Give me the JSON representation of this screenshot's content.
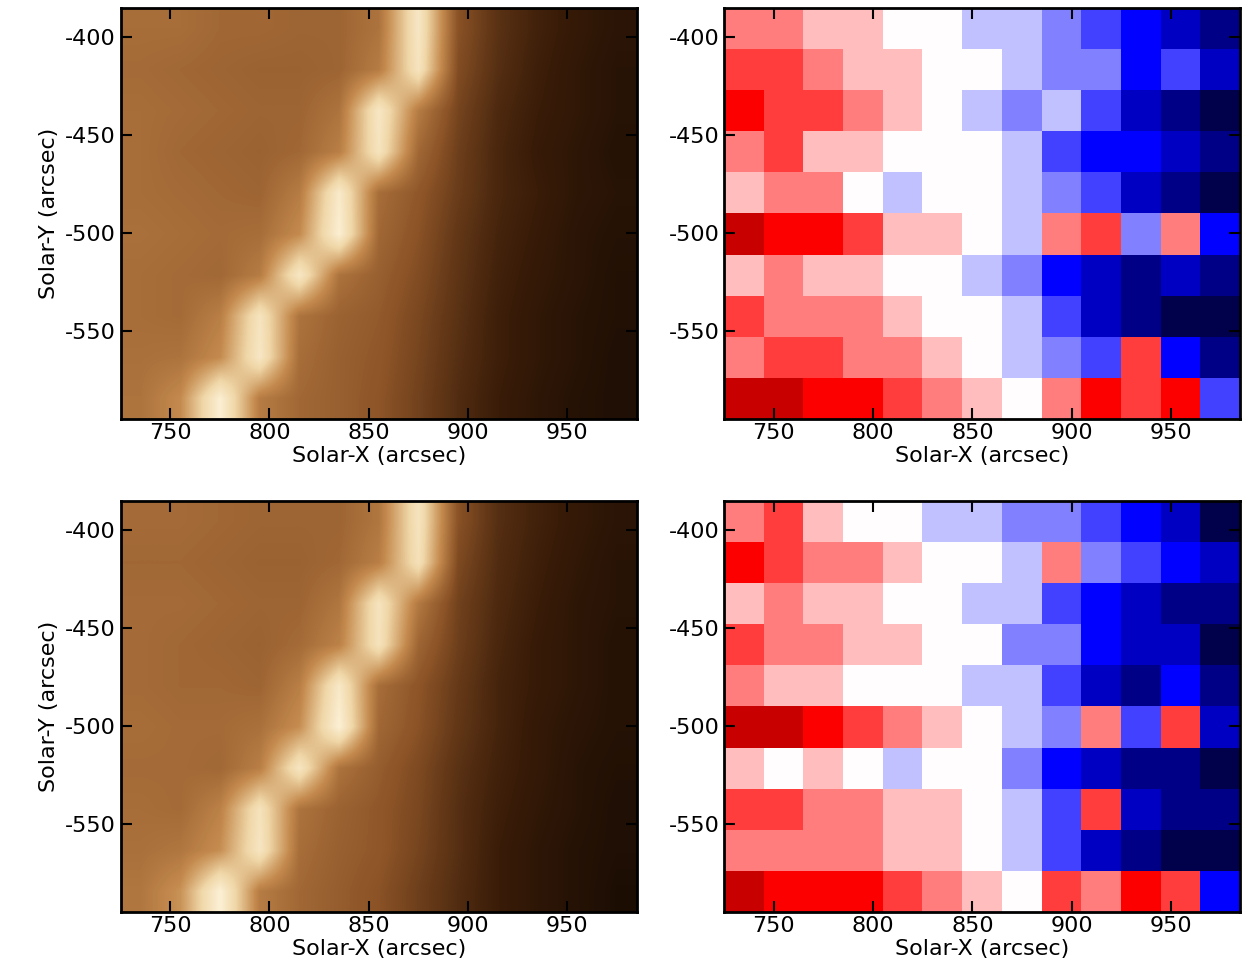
{
  "chart_data": [
    {
      "type": "heatmap",
      "xlabel": "Solar-X (arcsec)",
      "ylabel": "Solar-Y (arcsec)",
      "xlim": [
        725,
        985
      ],
      "ylim": [
        -595,
        -385
      ],
      "xticks": [
        750,
        800,
        850,
        900,
        950
      ],
      "yticks": [
        -550,
        -500,
        -450,
        -400
      ],
      "clim": [
        0,
        1
      ],
      "cells": [
        [
          0.5,
          0.5,
          0.48,
          0.48,
          0.47,
          0.47,
          0.52,
          0.9,
          0.4,
          0.28,
          0.22,
          0.18,
          0.15
        ],
        [
          0.49,
          0.48,
          0.47,
          0.46,
          0.46,
          0.47,
          0.55,
          0.88,
          0.38,
          0.27,
          0.21,
          0.17,
          0.14
        ],
        [
          0.5,
          0.49,
          0.48,
          0.47,
          0.47,
          0.52,
          0.9,
          0.55,
          0.35,
          0.25,
          0.2,
          0.17,
          0.14
        ],
        [
          0.5,
          0.48,
          0.47,
          0.46,
          0.48,
          0.56,
          0.88,
          0.48,
          0.33,
          0.24,
          0.19,
          0.16,
          0.13
        ],
        [
          0.5,
          0.49,
          0.48,
          0.47,
          0.55,
          0.92,
          0.5,
          0.42,
          0.32,
          0.24,
          0.2,
          0.16,
          0.14
        ],
        [
          0.51,
          0.5,
          0.49,
          0.5,
          0.6,
          0.95,
          0.48,
          0.4,
          0.3,
          0.23,
          0.19,
          0.15,
          0.13
        ],
        [
          0.5,
          0.49,
          0.48,
          0.55,
          0.9,
          0.52,
          0.45,
          0.38,
          0.29,
          0.22,
          0.18,
          0.15,
          0.12
        ],
        [
          0.5,
          0.49,
          0.56,
          0.88,
          0.52,
          0.46,
          0.43,
          0.36,
          0.28,
          0.21,
          0.17,
          0.14,
          0.12
        ],
        [
          0.51,
          0.52,
          0.6,
          0.9,
          0.5,
          0.45,
          0.42,
          0.35,
          0.27,
          0.21,
          0.17,
          0.14,
          0.11
        ],
        [
          0.52,
          0.6,
          0.95,
          0.55,
          0.48,
          0.45,
          0.41,
          0.34,
          0.26,
          0.2,
          0.16,
          0.13,
          0.11
        ]
      ]
    },
    {
      "type": "heatmap",
      "xlabel": "Solar-X (arcsec)",
      "xlim": [
        725,
        985
      ],
      "ylim": [
        -595,
        -385
      ],
      "xticks": [
        750,
        800,
        850,
        900,
        950
      ],
      "yticks": [
        -550,
        -500,
        -450,
        -400
      ],
      "clim": [
        -8,
        8
      ],
      "cells": [
        [
          2,
          2,
          1,
          1,
          0,
          0,
          -1,
          -1,
          -2,
          -3,
          -4,
          -5,
          -6
        ],
        [
          3,
          3,
          2,
          1,
          1,
          0,
          0,
          -1,
          -2,
          -2,
          -4,
          -3,
          -5
        ],
        [
          4,
          3,
          3,
          2,
          1,
          0,
          -1,
          -2,
          -1,
          -3,
          -5,
          -6,
          -7
        ],
        [
          2,
          3,
          1,
          1,
          0,
          0,
          0,
          -1,
          -3,
          -4,
          -4,
          -5,
          -6
        ],
        [
          1,
          2,
          2,
          0,
          -1,
          0,
          0,
          -1,
          -2,
          -3,
          -5,
          -6,
          -7
        ],
        [
          5,
          4,
          4,
          3,
          1,
          1,
          0,
          -1,
          2,
          3,
          -2,
          2,
          -4
        ],
        [
          1,
          2,
          1,
          1,
          0,
          0,
          -1,
          -2,
          -4,
          -5,
          -6,
          -5,
          -6
        ],
        [
          3,
          2,
          2,
          2,
          1,
          0,
          0,
          -1,
          -3,
          -5,
          -6,
          -7,
          -7
        ],
        [
          2,
          3,
          3,
          2,
          2,
          1,
          0,
          -1,
          -2,
          -3,
          3,
          -4,
          -6
        ],
        [
          5,
          5,
          4,
          4,
          3,
          2,
          1,
          0,
          2,
          4,
          3,
          4,
          -3
        ]
      ]
    },
    {
      "type": "heatmap",
      "xlabel": "Solar-X (arcsec)",
      "ylabel": "Solar-Y (arcsec)",
      "xlim": [
        725,
        985
      ],
      "ylim": [
        -595,
        -385
      ],
      "xticks": [
        750,
        800,
        850,
        900,
        950
      ],
      "yticks": [
        -550,
        -500,
        -450,
        -400
      ],
      "clim": [
        0,
        1
      ],
      "cells": [
        [
          0.49,
          0.49,
          0.48,
          0.47,
          0.47,
          0.47,
          0.53,
          0.88,
          0.4,
          0.27,
          0.22,
          0.18,
          0.15
        ],
        [
          0.48,
          0.48,
          0.47,
          0.46,
          0.46,
          0.48,
          0.56,
          0.86,
          0.37,
          0.26,
          0.21,
          0.17,
          0.14
        ],
        [
          0.49,
          0.49,
          0.48,
          0.47,
          0.47,
          0.53,
          0.88,
          0.54,
          0.34,
          0.25,
          0.2,
          0.16,
          0.14
        ],
        [
          0.49,
          0.48,
          0.47,
          0.46,
          0.49,
          0.57,
          0.87,
          0.47,
          0.33,
          0.24,
          0.19,
          0.16,
          0.13
        ],
        [
          0.49,
          0.48,
          0.48,
          0.47,
          0.56,
          0.91,
          0.5,
          0.41,
          0.31,
          0.23,
          0.19,
          0.16,
          0.13
        ],
        [
          0.5,
          0.49,
          0.49,
          0.51,
          0.61,
          0.96,
          0.48,
          0.4,
          0.3,
          0.23,
          0.18,
          0.15,
          0.13
        ],
        [
          0.49,
          0.49,
          0.48,
          0.56,
          0.89,
          0.52,
          0.44,
          0.37,
          0.28,
          0.22,
          0.18,
          0.14,
          0.12
        ],
        [
          0.5,
          0.49,
          0.57,
          0.87,
          0.52,
          0.46,
          0.42,
          0.36,
          0.27,
          0.21,
          0.17,
          0.14,
          0.11
        ],
        [
          0.51,
          0.53,
          0.61,
          0.89,
          0.5,
          0.45,
          0.42,
          0.35,
          0.27,
          0.2,
          0.16,
          0.13,
          0.11
        ],
        [
          0.53,
          0.62,
          0.96,
          0.55,
          0.48,
          0.44,
          0.4,
          0.33,
          0.26,
          0.2,
          0.16,
          0.13,
          0.1
        ]
      ]
    },
    {
      "type": "heatmap",
      "xlabel": "Solar-X (arcsec)",
      "xlim": [
        725,
        985
      ],
      "ylim": [
        -595,
        -385
      ],
      "xticks": [
        750,
        800,
        850,
        900,
        950
      ],
      "yticks": [
        -550,
        -500,
        -450,
        -400
      ],
      "clim": [
        -8,
        8
      ],
      "cells": [
        [
          2,
          3,
          1,
          0,
          0,
          -1,
          -1,
          -2,
          -2,
          -3,
          -4,
          -5,
          -7
        ],
        [
          4,
          3,
          2,
          2,
          1,
          0,
          0,
          -1,
          2,
          -2,
          -3,
          -4,
          -5
        ],
        [
          1,
          2,
          1,
          1,
          0,
          0,
          -1,
          -1,
          -3,
          -4,
          -5,
          -6,
          -6
        ],
        [
          3,
          2,
          2,
          1,
          1,
          0,
          0,
          -2,
          -2,
          -4,
          -5,
          -5,
          -7
        ],
        [
          2,
          1,
          1,
          0,
          0,
          0,
          -1,
          -1,
          -3,
          -5,
          -6,
          -4,
          -6
        ],
        [
          5,
          5,
          4,
          3,
          2,
          1,
          0,
          -1,
          -2,
          2,
          -3,
          3,
          -5
        ],
        [
          1,
          0,
          1,
          0,
          -1,
          0,
          0,
          -2,
          -4,
          -5,
          -6,
          -6,
          -7
        ],
        [
          3,
          3,
          2,
          2,
          1,
          1,
          0,
          -1,
          -3,
          3,
          -5,
          -6,
          -6
        ],
        [
          2,
          2,
          2,
          2,
          1,
          1,
          0,
          -1,
          -3,
          -5,
          -6,
          -7,
          -7
        ],
        [
          5,
          4,
          4,
          4,
          3,
          2,
          1,
          0,
          3,
          2,
          4,
          3,
          -4
        ]
      ]
    }
  ]
}
